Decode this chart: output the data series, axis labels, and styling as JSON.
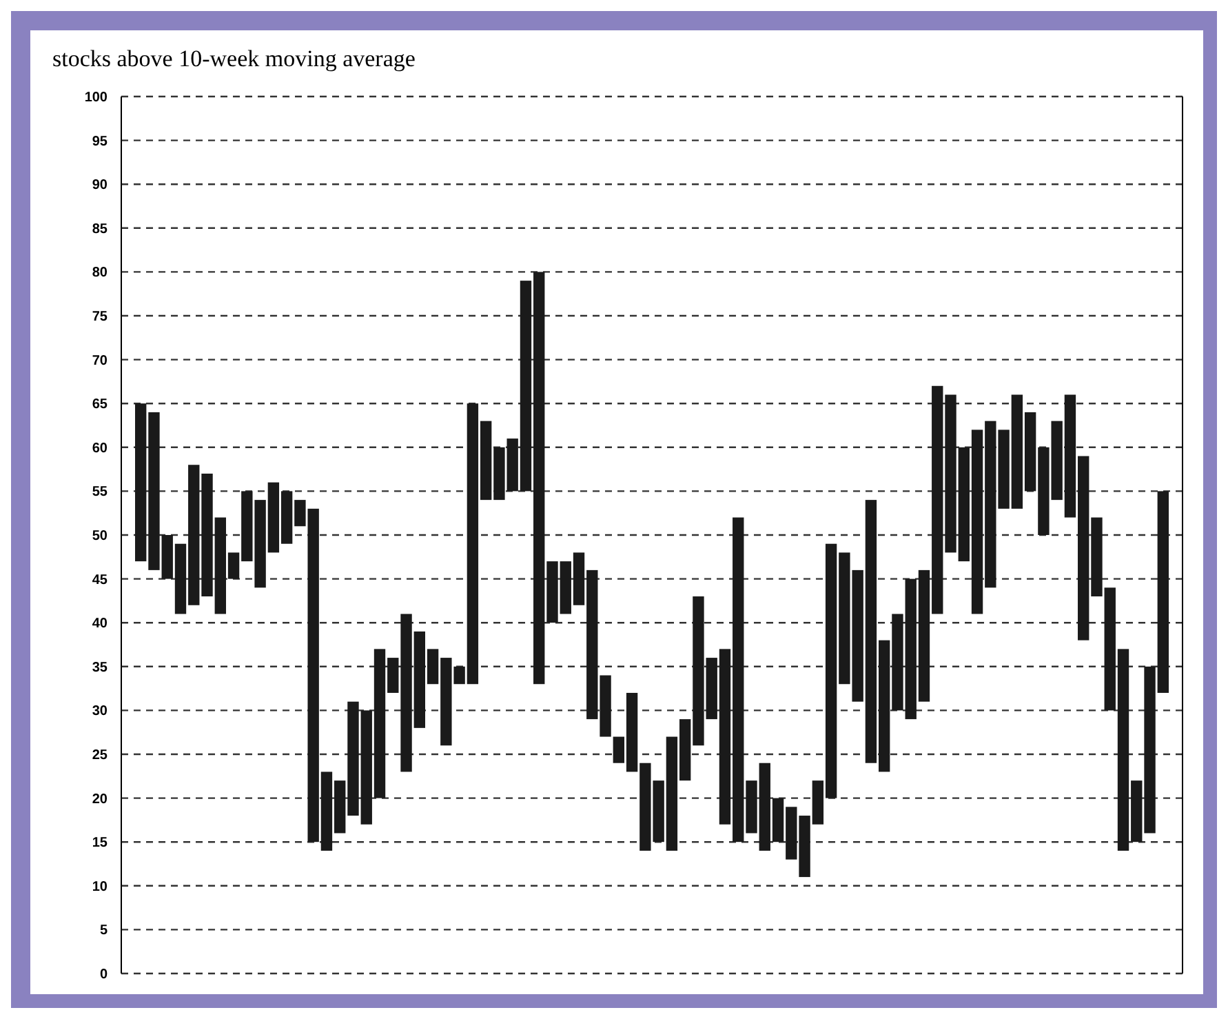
{
  "chart_data": {
    "type": "bar",
    "title": "stocks above 10-week moving average",
    "categories": [
      null,
      null,
      null,
      null,
      null,
      null,
      null,
      null,
      null,
      null,
      null,
      null,
      null,
      null,
      null,
      null,
      null,
      null,
      null,
      null,
      null,
      null,
      null,
      null,
      null,
      null,
      null,
      null,
      null,
      null,
      null,
      null,
      null,
      null,
      null,
      null,
      null,
      null,
      null,
      null,
      null,
      null,
      null,
      null,
      null,
      null,
      null,
      null,
      null,
      null,
      null,
      null,
      null,
      null,
      null,
      null,
      null,
      null,
      null,
      null,
      null,
      null,
      null,
      null,
      null,
      null,
      null,
      null,
      null,
      null,
      null,
      null,
      null,
      null,
      null,
      null,
      null,
      null
    ],
    "base": [
      47,
      46,
      45,
      41,
      42,
      43,
      41,
      45,
      47,
      44,
      48,
      49,
      51,
      15,
      14,
      16,
      18,
      17,
      20,
      32,
      23,
      28,
      33,
      26,
      33,
      33,
      54,
      54,
      55,
      55,
      33,
      40,
      41,
      42,
      29,
      27,
      24,
      23,
      14,
      15,
      14,
      22,
      26,
      29,
      17,
      15,
      16,
      14,
      15,
      13,
      11,
      17,
      20,
      33,
      31,
      24,
      23,
      30,
      29,
      31,
      41,
      48,
      47,
      41,
      44,
      53,
      53,
      55,
      50,
      54,
      52,
      38,
      43,
      30,
      14,
      15,
      16,
      32
    ],
    "values": [
      18,
      18,
      5,
      8,
      16,
      14,
      11,
      3,
      8,
      10,
      8,
      6,
      3,
      38,
      9,
      6,
      13,
      13,
      17,
      4,
      18,
      11,
      4,
      10,
      2,
      32,
      9,
      6,
      6,
      24,
      47,
      7,
      6,
      6,
      17,
      7,
      3,
      9,
      10,
      7,
      13,
      7,
      17,
      7,
      20,
      37,
      6,
      10,
      5,
      6,
      7,
      5,
      29,
      15,
      15,
      30,
      15,
      11,
      16,
      15,
      26,
      18,
      13,
      21,
      19,
      9,
      13,
      9,
      10,
      9,
      14,
      21,
      9,
      14,
      23,
      7,
      19,
      23
    ],
    "color": "#1a1a1a",
    "ylim": [
      0,
      100
    ],
    "yticks": [
      0,
      5,
      10,
      15,
      20,
      25,
      30,
      35,
      40,
      45,
      50,
      55,
      60,
      65,
      70,
      75,
      80,
      85,
      90,
      95,
      100
    ],
    "grid": "y"
  }
}
